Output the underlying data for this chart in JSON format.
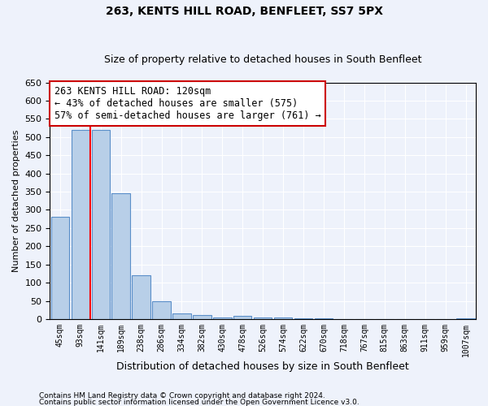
{
  "title1": "263, KENTS HILL ROAD, BENFLEET, SS7 5PX",
  "title2": "Size of property relative to detached houses in South Benfleet",
  "xlabel": "Distribution of detached houses by size in South Benfleet",
  "ylabel": "Number of detached properties",
  "footnote1": "Contains HM Land Registry data © Crown copyright and database right 2024.",
  "footnote2": "Contains public sector information licensed under the Open Government Licence v3.0.",
  "categories": [
    "45sqm",
    "93sqm",
    "141sqm",
    "189sqm",
    "238sqm",
    "286sqm",
    "334sqm",
    "382sqm",
    "430sqm",
    "478sqm",
    "526sqm",
    "574sqm",
    "622sqm",
    "670sqm",
    "718sqm",
    "767sqm",
    "815sqm",
    "863sqm",
    "911sqm",
    "959sqm",
    "1007sqm"
  ],
  "values": [
    280,
    520,
    520,
    345,
    120,
    48,
    15,
    10,
    5,
    8,
    5,
    5,
    3,
    2,
    1,
    0,
    0,
    0,
    0,
    0,
    2
  ],
  "bar_color": "#b8cfe8",
  "bar_edge_color": "#5b8fc9",
  "background_color": "#eef2fb",
  "grid_color": "#ffffff",
  "red_line_x": 1.5,
  "annotation_line1": "263 KENTS HILL ROAD: 120sqm",
  "annotation_line2": "← 43% of detached houses are smaller (575)",
  "annotation_line3": "57% of semi-detached houses are larger (761) →",
  "annotation_box_color": "#ffffff",
  "annotation_box_edge_color": "#cc0000",
  "ylim": [
    0,
    650
  ],
  "yticks": [
    0,
    50,
    100,
    150,
    200,
    250,
    300,
    350,
    400,
    450,
    500,
    550,
    600,
    650
  ]
}
